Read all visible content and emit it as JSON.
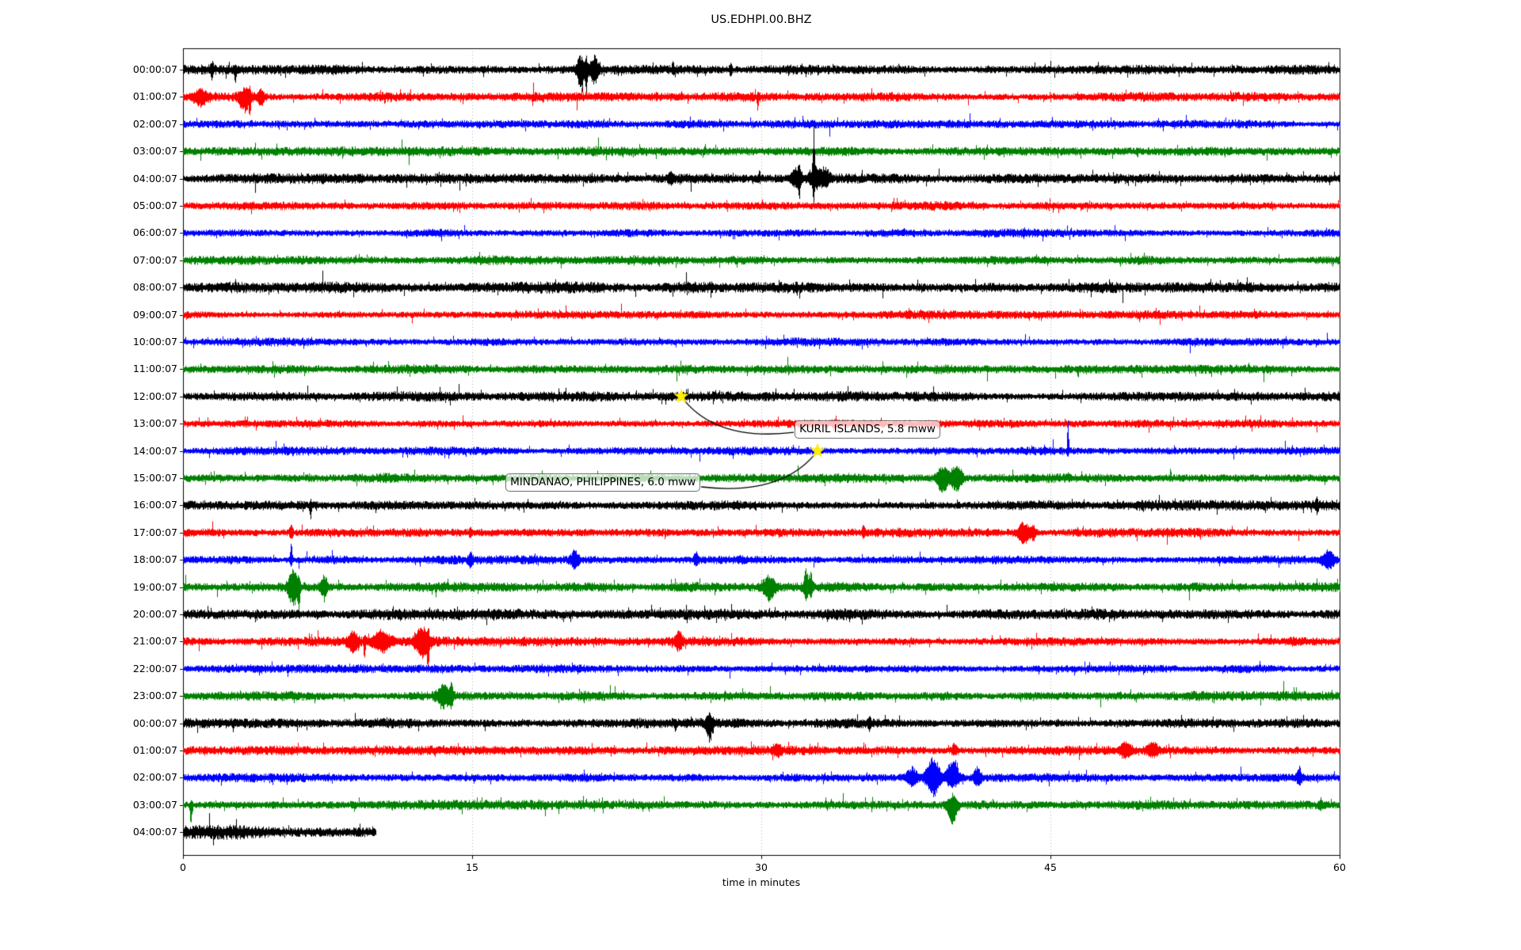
{
  "title": "US.EDHPI.00.BHZ",
  "chart_data": {
    "type": "line",
    "subtype": "helicorder-seismogram",
    "title": "US.EDHPI.00.BHZ",
    "xlabel": "time in minutes",
    "xlim": [
      0,
      60
    ],
    "x_ticks": [
      0,
      15,
      30,
      45,
      60
    ],
    "x_tick_labels": [
      "0",
      "15",
      "30",
      "45",
      "60"
    ],
    "grid_minutes": [
      15,
      30,
      45
    ],
    "grid_color": "#b0b0b0",
    "trace_color_cycle": [
      "#000000",
      "#ff0000",
      "#0000ff",
      "#008000"
    ],
    "star_color": "#ffee00",
    "rows": [
      {
        "label": "00:00:07",
        "color": "#000000",
        "amp": 4.0,
        "start_min": 0,
        "end_min": 60,
        "events": [
          {
            "t": 1.5,
            "d": 0.06,
            "u": 9,
            "dn": 13
          },
          {
            "t": 2.7,
            "d": 0.05,
            "u": 4,
            "dn": 18
          },
          {
            "t": 20.6,
            "d": 0.18,
            "u": 16,
            "dn": 22
          },
          {
            "t": 20.9,
            "d": 0.06,
            "u": 20,
            "dn": 34
          },
          {
            "t": 21.3,
            "d": 0.22,
            "u": 14,
            "dn": 14
          },
          {
            "t": 25.4,
            "d": 0.05,
            "u": 11,
            "dn": 5
          },
          {
            "t": 28.4,
            "d": 0.06,
            "u": 7,
            "dn": 7
          }
        ]
      },
      {
        "label": "01:00:07",
        "color": "#ff0000",
        "amp": 3.8,
        "start_min": 0,
        "end_min": 60,
        "events": [
          {
            "t": 0.9,
            "d": 0.35,
            "u": 7,
            "dn": 9
          },
          {
            "t": 3.2,
            "d": 0.3,
            "u": 9,
            "dn": 16
          },
          {
            "t": 3.45,
            "d": 0.05,
            "u": 8,
            "dn": 24
          },
          {
            "t": 4.0,
            "d": 0.2,
            "u": 7,
            "dn": 10
          },
          {
            "t": 29.8,
            "d": 0.04,
            "u": 3,
            "dn": 20
          }
        ]
      },
      {
        "label": "02:00:07",
        "color": "#0000ff",
        "amp": 3.4,
        "start_min": 0,
        "end_min": 60,
        "events": []
      },
      {
        "label": "03:00:07",
        "color": "#008000",
        "amp": 3.8,
        "start_min": 0,
        "end_min": 60,
        "events": []
      },
      {
        "label": "04:00:07",
        "color": "#000000",
        "amp": 4.0,
        "start_min": 0,
        "end_min": 60,
        "events": [
          {
            "t": 25.3,
            "d": 0.15,
            "u": 6,
            "dn": 5
          },
          {
            "t": 29.9,
            "d": 0.04,
            "u": 12,
            "dn": 4
          },
          {
            "t": 31.8,
            "d": 0.3,
            "u": 13,
            "dn": 9
          },
          {
            "t": 31.95,
            "d": 0.05,
            "u": 10,
            "dn": 25
          },
          {
            "t": 32.7,
            "d": 0.05,
            "u": 58,
            "dn": 28
          },
          {
            "t": 32.78,
            "d": 0.3,
            "u": 14,
            "dn": 10
          },
          {
            "t": 33.3,
            "d": 0.25,
            "u": 10,
            "dn": 8
          }
        ]
      },
      {
        "label": "05:00:07",
        "color": "#ff0000",
        "amp": 3.6,
        "start_min": 0,
        "end_min": 60,
        "events": []
      },
      {
        "label": "06:00:07",
        "color": "#0000ff",
        "amp": 3.4,
        "start_min": 0,
        "end_min": 60,
        "events": []
      },
      {
        "label": "07:00:07",
        "color": "#008000",
        "amp": 3.8,
        "start_min": 0,
        "end_min": 60,
        "events": []
      },
      {
        "label": "08:00:07",
        "color": "#000000",
        "amp": 4.6,
        "start_min": 0,
        "end_min": 60,
        "events": []
      },
      {
        "label": "09:00:07",
        "color": "#ff0000",
        "amp": 3.6,
        "start_min": 0,
        "end_min": 60,
        "events": []
      },
      {
        "label": "10:00:07",
        "color": "#0000ff",
        "amp": 3.4,
        "start_min": 0,
        "end_min": 60,
        "events": []
      },
      {
        "label": "11:00:07",
        "color": "#008000",
        "amp": 3.8,
        "start_min": 0,
        "end_min": 60,
        "events": []
      },
      {
        "label": "12:00:07",
        "color": "#000000",
        "amp": 4.0,
        "start_min": 0,
        "end_min": 60,
        "events": []
      },
      {
        "label": "13:00:07",
        "color": "#ff0000",
        "amp": 3.6,
        "start_min": 0,
        "end_min": 60,
        "events": []
      },
      {
        "label": "14:00:07",
        "color": "#0000ff",
        "amp": 3.4,
        "start_min": 0,
        "end_min": 60,
        "events": [
          {
            "t": 45.9,
            "d": 0.04,
            "u": 48,
            "dn": 6
          }
        ]
      },
      {
        "label": "15:00:07",
        "color": "#008000",
        "amp": 3.9,
        "start_min": 0,
        "end_min": 60,
        "events": [
          {
            "t": 39.4,
            "d": 0.3,
            "u": 15,
            "dn": 17
          },
          {
            "t": 40.1,
            "d": 0.28,
            "u": 18,
            "dn": 15
          }
        ]
      },
      {
        "label": "16:00:07",
        "color": "#000000",
        "amp": 4.2,
        "start_min": 0,
        "end_min": 60,
        "events": [
          {
            "t": 6.6,
            "d": 0.05,
            "u": 5,
            "dn": 15
          },
          {
            "t": 58.8,
            "d": 0.07,
            "u": 7,
            "dn": 7
          }
        ]
      },
      {
        "label": "17:00:07",
        "color": "#ff0000",
        "amp": 3.7,
        "start_min": 0,
        "end_min": 60,
        "events": [
          {
            "t": 5.6,
            "d": 0.07,
            "u": 11,
            "dn": 9
          },
          {
            "t": 14.9,
            "d": 0.06,
            "u": 7,
            "dn": 7
          },
          {
            "t": 35.3,
            "d": 0.07,
            "u": 8,
            "dn": 6
          },
          {
            "t": 43.6,
            "d": 0.3,
            "u": 11,
            "dn": 13
          },
          {
            "t": 44.1,
            "d": 0.12,
            "u": 9,
            "dn": 9
          }
        ]
      },
      {
        "label": "18:00:07",
        "color": "#0000ff",
        "amp": 3.5,
        "start_min": 0,
        "end_min": 60,
        "events": [
          {
            "t": 5.6,
            "d": 0.06,
            "u": 20,
            "dn": 9
          },
          {
            "t": 14.9,
            "d": 0.1,
            "u": 9,
            "dn": 7
          },
          {
            "t": 20.3,
            "d": 0.2,
            "u": 9,
            "dn": 9
          },
          {
            "t": 26.6,
            "d": 0.12,
            "u": 8,
            "dn": 7
          },
          {
            "t": 59.4,
            "d": 0.3,
            "u": 11,
            "dn": 11
          }
        ]
      },
      {
        "label": "19:00:07",
        "color": "#008000",
        "amp": 4.0,
        "start_min": 0,
        "end_min": 60,
        "events": [
          {
            "t": 5.7,
            "d": 0.25,
            "u": 20,
            "dn": 22
          },
          {
            "t": 6.0,
            "d": 0.06,
            "u": 10,
            "dn": 26
          },
          {
            "t": 7.3,
            "d": 0.2,
            "u": 13,
            "dn": 11
          },
          {
            "t": 30.4,
            "d": 0.3,
            "u": 13,
            "dn": 15
          },
          {
            "t": 32.3,
            "d": 0.1,
            "u": 22,
            "dn": 18
          },
          {
            "t": 32.55,
            "d": 0.1,
            "u": 18,
            "dn": 12
          }
        ]
      },
      {
        "label": "20:00:07",
        "color": "#000000",
        "amp": 4.4,
        "start_min": 0,
        "end_min": 60,
        "events": []
      },
      {
        "label": "21:00:07",
        "color": "#ff0000",
        "amp": 3.8,
        "start_min": 0,
        "end_min": 60,
        "events": [
          {
            "t": 8.8,
            "d": 0.25,
            "u": 9,
            "dn": 12
          },
          {
            "t": 9.4,
            "d": 0.05,
            "u": 5,
            "dn": 24
          },
          {
            "t": 10.3,
            "d": 0.45,
            "u": 11,
            "dn": 11
          },
          {
            "t": 12.4,
            "d": 0.35,
            "u": 16,
            "dn": 18
          },
          {
            "t": 12.7,
            "d": 0.06,
            "u": 10,
            "dn": 28
          },
          {
            "t": 25.7,
            "d": 0.18,
            "u": 11,
            "dn": 11
          }
        ]
      },
      {
        "label": "22:00:07",
        "color": "#0000ff",
        "amp": 3.4,
        "start_min": 0,
        "end_min": 60,
        "events": []
      },
      {
        "label": "23:00:07",
        "color": "#008000",
        "amp": 3.9,
        "start_min": 0,
        "end_min": 60,
        "events": [
          {
            "t": 13.5,
            "d": 0.3,
            "u": 13,
            "dn": 15
          },
          {
            "t": 13.9,
            "d": 0.1,
            "u": 10,
            "dn": 10
          }
        ]
      },
      {
        "label": "00:00:07",
        "color": "#000000",
        "amp": 4.1,
        "start_min": 0,
        "end_min": 60,
        "events": [
          {
            "t": 27.3,
            "d": 0.18,
            "u": 9,
            "dn": 20
          },
          {
            "t": 35.6,
            "d": 0.08,
            "u": 6,
            "dn": 8
          }
        ]
      },
      {
        "label": "01:00:07",
        "color": "#ff0000",
        "amp": 3.7,
        "start_min": 0,
        "end_min": 60,
        "events": [
          {
            "t": 30.8,
            "d": 0.2,
            "u": 7,
            "dn": 5
          },
          {
            "t": 40.0,
            "d": 0.15,
            "u": 7,
            "dn": 5
          },
          {
            "t": 48.9,
            "d": 0.3,
            "u": 8,
            "dn": 8
          },
          {
            "t": 50.3,
            "d": 0.3,
            "u": 9,
            "dn": 7
          }
        ]
      },
      {
        "label": "02:00:07",
        "color": "#0000ff",
        "amp": 3.5,
        "start_min": 0,
        "end_min": 60,
        "events": [
          {
            "t": 37.8,
            "d": 0.3,
            "u": 12,
            "dn": 10
          },
          {
            "t": 38.9,
            "d": 0.35,
            "u": 26,
            "dn": 24
          },
          {
            "t": 39.9,
            "d": 0.3,
            "u": 24,
            "dn": 12
          },
          {
            "t": 41.2,
            "d": 0.2,
            "u": 11,
            "dn": 9
          },
          {
            "t": 57.9,
            "d": 0.12,
            "u": 12,
            "dn": 9
          }
        ]
      },
      {
        "label": "03:00:07",
        "color": "#008000",
        "amp": 3.9,
        "start_min": 0,
        "end_min": 60,
        "events": [
          {
            "t": 0.4,
            "d": 0.05,
            "u": 4,
            "dn": 26
          },
          {
            "t": 39.9,
            "d": 0.25,
            "u": 11,
            "dn": 24
          },
          {
            "t": 59.0,
            "d": 0.08,
            "u": 6,
            "dn": 6
          }
        ]
      },
      {
        "label": "04:00:07",
        "color": "#000000",
        "amp": 5.5,
        "start_min": 0,
        "end_min": 10,
        "events": []
      }
    ],
    "annotations": [
      {
        "text": "KURIL ISLANDS, 5.8 mww",
        "star_row": 12,
        "star_min": 25.85,
        "box_row": 13,
        "box_left_min": 31.73,
        "box_dy": 7,
        "box_side": "left"
      },
      {
        "text": "MINDANAO, PHILIPPINES, 6.0 mww",
        "star_row": 14,
        "star_min": 32.92,
        "box_row": 15,
        "box_left_min": 16.73,
        "box_dy": 5,
        "box_side": "right"
      }
    ]
  }
}
